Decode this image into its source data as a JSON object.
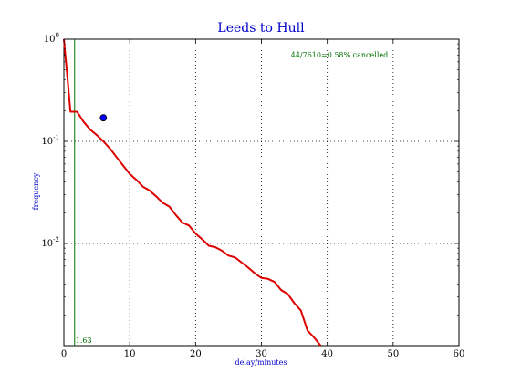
{
  "chart_data": {
    "type": "line",
    "title": "Leeds to Hull",
    "xlabel": "delay/minutes",
    "ylabel": "frequency",
    "xlim": [
      0,
      60
    ],
    "ylim": [
      0.001,
      1
    ],
    "yscale": "log",
    "grid": true,
    "x_ticks": [
      "0",
      "10",
      "20",
      "30",
      "40",
      "50",
      "60"
    ],
    "y_ticks": [
      {
        "base": "10",
        "exp": "0"
      },
      {
        "base": "10",
        "exp": "-1"
      },
      {
        "base": "10",
        "exp": "-2"
      }
    ],
    "annotation": "44/7610=0.58% cancelled",
    "vline": {
      "x": 1.63,
      "label": "1.63",
      "color": "#007000"
    },
    "marker": {
      "x": 6,
      "y": 0.17,
      "color": "#0000ff"
    },
    "series": [
      {
        "color": "#dd0000",
        "x": [
          0,
          0.5,
          1,
          2,
          3,
          4,
          5,
          6,
          7,
          8,
          9,
          10,
          11,
          12,
          13,
          14,
          15,
          16,
          17,
          18,
          19,
          20,
          21,
          22,
          23,
          24,
          25,
          26,
          27,
          28,
          29,
          30,
          31,
          32,
          33,
          34,
          35,
          36,
          37,
          38,
          39
        ],
        "y": [
          1.0,
          0.45,
          0.195,
          0.195,
          0.155,
          0.13,
          0.115,
          0.1,
          0.085,
          0.07,
          0.058,
          0.048,
          0.042,
          0.036,
          0.033,
          0.029,
          0.025,
          0.023,
          0.019,
          0.016,
          0.015,
          0.0125,
          0.011,
          0.0095,
          0.0092,
          0.0085,
          0.0076,
          0.0073,
          0.0065,
          0.0058,
          0.0051,
          0.0046,
          0.0045,
          0.0042,
          0.0035,
          0.0032,
          0.0026,
          0.0022,
          0.0014,
          0.0012,
          0.001
        ]
      }
    ]
  }
}
